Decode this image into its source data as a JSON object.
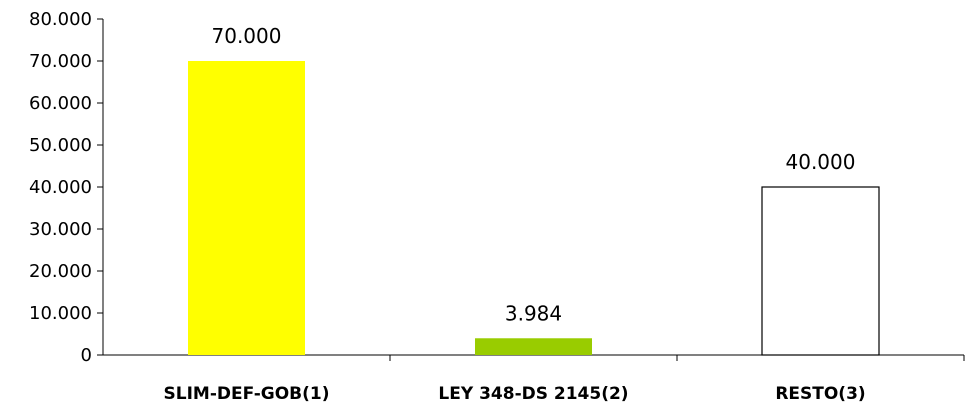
{
  "chart_data": {
    "type": "bar",
    "categories": [
      "SLIM-DEF-GOB(1)",
      "LEY 348-DS 2145(2)",
      "RESTO(3)"
    ],
    "values": [
      70000,
      3984,
      40000
    ],
    "data_labels": [
      "70.000",
      "3.984",
      "40.000"
    ],
    "bar_colors": [
      "#FFFF00",
      "#99CC00",
      "#FFFFFF"
    ],
    "bar_outline": [
      "none",
      "none",
      "#000000"
    ],
    "ylim": [
      0,
      80000
    ],
    "ytick_values": [
      0,
      10000,
      20000,
      30000,
      40000,
      50000,
      60000,
      70000,
      80000
    ],
    "ytick_labels": [
      "0",
      "10.000",
      "20.000",
      "30.000",
      "40.000",
      "50.000",
      "60.000",
      "70.000",
      "80.000"
    ],
    "title": "",
    "xlabel": "",
    "ylabel": "",
    "grid": false,
    "legend": "none"
  }
}
